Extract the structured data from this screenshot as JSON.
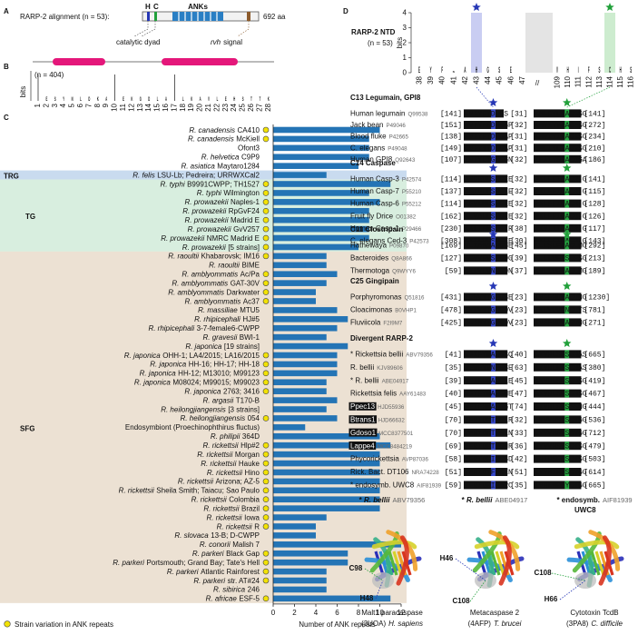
{
  "panel_labels": [
    "A",
    "B",
    "C",
    "D",
    "E"
  ],
  "panel_a": {
    "title": "RARP-2 alignment (n = 53):",
    "his": "H",
    "cys": "C",
    "domain": "ANKs",
    "length": "692 aa",
    "dyad": "catalytic dyad",
    "signal_motif": "rvh",
    "signal": "signal"
  },
  "panel_b": {
    "n": "(n = 404)",
    "ylabel": "bits",
    "letters": [
      null,
      "E",
      "S",
      "Y",
      "N",
      "L",
      "D",
      "K",
      "A",
      null,
      "E",
      "K",
      "G",
      "D",
      "L",
      "A",
      null,
      "L",
      "K",
      "A",
      "V",
      "L",
      "E",
      "H",
      "S",
      "T",
      "T",
      "K"
    ],
    "positions": [
      1,
      2,
      3,
      4,
      5,
      6,
      7,
      8,
      9,
      10,
      11,
      12,
      13,
      14,
      15,
      16,
      17,
      18,
      19,
      20,
      21,
      22,
      23,
      24,
      25,
      26,
      27,
      28
    ]
  },
  "chart_data": {
    "type": "bar",
    "orientation": "horizontal",
    "color": "#2474b5",
    "xlabel": "Number of ANK repeats",
    "xlim": [
      0,
      12
    ],
    "xticks": [
      0,
      2,
      4,
      6,
      8,
      10,
      12
    ],
    "legend": "Strain variation in ANK repeats",
    "marker_color": "#f2e205",
    "groups": [
      {
        "name": "TRG",
        "rows": [
          5,
          5
        ],
        "color": "#2f6fbf",
        "band": "#c9dbef"
      },
      {
        "name": "TG",
        "rows": [
          6,
          13
        ],
        "color": "#35a563",
        "band": "#d8eedf"
      },
      {
        "name": "SFG",
        "rows": [
          14,
          52
        ],
        "color": "#ad6638",
        "band": "#ece1d3"
      }
    ],
    "categories": [
      {
        "species": "R. canadensis",
        "strain": "CA410"
      },
      {
        "species": "R. canadensis",
        "strain": "McKiell"
      },
      {
        "strain": "Ofont3"
      },
      {
        "species": "R. helvetica",
        "strain": "C9P9"
      },
      {
        "species": "R. asiatica",
        "strain": "Maytaro1284"
      },
      {
        "species": "R. felis",
        "strain": "LSU-Lb; Pedreira; URRWXCal2"
      },
      {
        "species": "R. typhi",
        "strain": "B9991CWPP; TH1527"
      },
      {
        "species": "R. typhi",
        "strain": "Wilmington"
      },
      {
        "species": "R. prowazekii",
        "strain": "Naples-1"
      },
      {
        "species": "R. prowazekii",
        "strain": "RpGvF24"
      },
      {
        "species": "R. prowazekii",
        "strain": "Madrid E"
      },
      {
        "species": "R. prowazekii",
        "strain": "GvV257"
      },
      {
        "species": "R. prowazekii",
        "strain": "NMRC Madrid E"
      },
      {
        "species": "R. prowazekii",
        "strain": "[5 strains]"
      },
      {
        "species": "R. raoultii",
        "strain": "Khabarovsk; IM16"
      },
      {
        "species": "R. raoultii",
        "strain": "BIME"
      },
      {
        "species": "R. amblyommatis",
        "strain": "Ac/Pa"
      },
      {
        "species": "R. amblyommatis",
        "strain": "GAT-30V"
      },
      {
        "species": "R. amblyommatis",
        "strain": "Darkwater"
      },
      {
        "species": "R. amblyommatis",
        "strain": "Ac37"
      },
      {
        "species": "R. massiliae",
        "strain": "MTU5"
      },
      {
        "species": "R. rhipicephali",
        "strain": "HJ#5"
      },
      {
        "species": "R. rhipicephali",
        "strain": "3-7-female6-CWPP"
      },
      {
        "species": "R. gravesii",
        "strain": "BWI-1"
      },
      {
        "species": "R. japonica",
        "strain": "[19 strains]"
      },
      {
        "species": "R. japonica",
        "strain": "OHH-1; LA4/2015; LA16/2015"
      },
      {
        "species": "R. japonica",
        "strain": "HH-16; HH-17; HH-18"
      },
      {
        "species": "R. japonica",
        "strain": "HH-12; M13010; M99123"
      },
      {
        "species": "R. japonica",
        "strain": "M08024; M99015; M99023"
      },
      {
        "species": "R. japonica",
        "strain": "2763; 3416"
      },
      {
        "species": "R. argasii",
        "strain": "T170-B"
      },
      {
        "species": "R. heilongjiangensis",
        "strain": "[3 strains]"
      },
      {
        "species": "R. heilongjiangensis",
        "strain": "054"
      },
      {
        "strain": "Endosymbiont (Proechinophthirus fluctus)"
      },
      {
        "species": "R. philipii",
        "strain": "364D"
      },
      {
        "species": "R. rickettsii",
        "strain": "Hlp#2"
      },
      {
        "species": "R. rickettsii",
        "strain": "Morgan"
      },
      {
        "species": "R. rickettsii",
        "strain": "Hauke"
      },
      {
        "species": "R. rickettsii",
        "strain": "Hino"
      },
      {
        "species": "R. rickettsii",
        "strain": "Arizona; AZ-5"
      },
      {
        "species": "R. rickettsii",
        "strain": "Sheila Smith; Taiacu; Sao Paulo"
      },
      {
        "species": "R. rickettsii",
        "strain": "Colombia"
      },
      {
        "species": "R. rickettsii",
        "strain": "Brazil"
      },
      {
        "species": "R. rickettsii",
        "strain": "Iowa"
      },
      {
        "species": "R. rickettsii",
        "strain": "R"
      },
      {
        "species": "R. slovaca",
        "strain": "13-B; D-CWPP"
      },
      {
        "species": "R. conorii",
        "strain": "Malish 7"
      },
      {
        "species": "R. parkeri",
        "strain": "Black Gap"
      },
      {
        "species": "R. parkeri",
        "strain": "Portsmouth; Grand Bay; Tate's Hell"
      },
      {
        "species": "R. parkeri",
        "strain": "Atlantic Rainforest"
      },
      {
        "species": "R. parkeri",
        "strain": "str. AT#24"
      },
      {
        "species": "R. sibirica",
        "strain": "246"
      },
      {
        "species": "R. africae",
        "strain": "ESF-5"
      }
    ],
    "values": [
      10,
      9,
      9,
      9,
      8,
      5,
      11,
      9,
      10,
      9,
      9,
      9,
      9,
      8,
      5,
      5,
      6,
      5,
      4,
      4,
      6,
      7,
      6,
      5,
      7,
      6,
      6,
      6,
      5,
      5,
      6,
      5,
      6,
      3,
      10,
      11,
      10,
      10,
      10,
      10,
      10,
      10,
      10,
      5,
      4,
      4,
      12,
      7,
      7,
      5,
      5,
      5,
      11
    ],
    "variation": [
      true,
      true,
      false,
      false,
      false,
      false,
      true,
      true,
      true,
      true,
      true,
      true,
      true,
      true,
      true,
      false,
      true,
      true,
      true,
      true,
      false,
      false,
      false,
      false,
      false,
      true,
      true,
      true,
      true,
      true,
      false,
      false,
      true,
      false,
      false,
      true,
      true,
      true,
      true,
      true,
      true,
      true,
      true,
      true,
      true,
      false,
      false,
      true,
      true,
      true,
      true,
      false,
      true
    ]
  },
  "panel_d": {
    "title": "RARP-2 NTD",
    "n": "(n = 53)",
    "ylabel": "bits",
    "ylim": [
      0,
      4
    ],
    "yticks": [
      0,
      1,
      2,
      3,
      4
    ],
    "logo_left": {
      "positions": [
        38,
        39,
        40,
        41,
        42,
        43,
        44,
        45,
        46,
        47
      ],
      "letters": [
        "E",
        "Y",
        "F",
        "N",
        "A",
        "H",
        "G",
        "S",
        "E",
        null
      ]
    },
    "break": "//",
    "logo_right": {
      "positions": [
        109,
        110,
        111,
        112,
        113,
        114,
        115,
        116
      ],
      "letters": [
        "V",
        "H",
        "I",
        "F",
        "S",
        "C",
        "H",
        "S"
      ]
    },
    "families": [
      {
        "name": "C13 Legumain, GPI8",
        "rows": [
          {
            "name": "Human legumain",
            "acc": "Q99538",
            "start": "[141]",
            "seq1": "FVFYFTDHGS",
            "gap": "[31]",
            "seq2": "KMLFYLEACESG",
            "end": "[141]"
          },
          {
            "name": "Jack bean",
            "acc": "P49046",
            "start": "[151]",
            "seq1": "FVFYFSDHGGP",
            "gap": "[32]",
            "seq2": "KMVIYVEACESG",
            "end": "[272]"
          },
          {
            "name": "Blood fluke",
            "acc": "P42665",
            "start": "[138]",
            "seq1": "FVFYFTDHGAP",
            "gap": "[31]",
            "seq2": "KMVIYIEACESG",
            "end": "[234]"
          },
          {
            "name": "C. elegans",
            "acc": "P49048",
            "start": "[149]",
            "seq1": "LVFYYTDHGAP",
            "gap": "[31]",
            "seq2": "QMLIYLEACESG",
            "end": "[210]"
          },
          {
            "name": "Human GPI8",
            "acc": "Q92643",
            "start": "[107]",
            "seq1": "IVFYLTGHGGN",
            "gap": "[32]",
            "seq2": "KFAIYSEACQGA",
            "end": "[186]"
          }
        ]
      },
      {
        "name": "C14 Caspase",
        "rows": [
          {
            "name": "Human Casp-3",
            "acc": "P42574",
            "start": "[114]",
            "seq1": "ANCRVLSHGEE",
            "gap": "[32]",
            "seq2": "PKLFFIQACR-G",
            "end": "[141]"
          },
          {
            "name": "Human Casp-7",
            "acc": "P55210",
            "start": "[137]",
            "seq1": "AGIPLLSHGEE",
            "gap": "[32]",
            "seq2": "PKLFFIQACR-G",
            "end": "[115]"
          },
          {
            "name": "Human Casp-6",
            "acc": "P55212",
            "start": "[114]",
            "seq1": "KFVLMLSHGEE",
            "gap": "[32]",
            "seq2": "PKLFFIQACR-G",
            "end": "[128]"
          },
          {
            "name": "Fruit fly Drice",
            "acc": "O01382",
            "start": "[162]",
            "seq1": "KLVALLSHGEE",
            "gap": "[32]",
            "seq2": "PKLFFIQACQ-G",
            "end": "[126]"
          },
          {
            "name": "Human Casp-1",
            "acc": "P29466",
            "start": "[230]",
            "seq1": "KALIFMSHGIR",
            "gap": "[38]",
            "seq2": "PKVIIIQACR-G",
            "end": "[117]"
          },
          {
            "name": "C. elegans Ced-3",
            "acc": "P42573",
            "start": "[308]",
            "seq1": "KIILVLSHGEE",
            "gap": "[30]",
            "seq2": "PKLFFIQACR-G",
            "end": "[143]"
          }
        ]
      },
      {
        "name": "C11 Clostripain",
        "rows": [
          {
            "name": "Hathewaya",
            "acc": "P09870",
            "start": "[169]",
            "seq1": "VLIANAAHGGE",
            "gap": "[45]",
            "seq2": "KLLSLFDACLMG",
            "end": "[292]"
          },
          {
            "name": "Bacteroides",
            "acc": "Q8A866",
            "start": "[127]",
            "seq1": "GGVVFVSHGDG",
            "gap": "[39]",
            "seq2": "KLLLVFDSCFSG",
            "end": "[213]"
          },
          {
            "name": "Thermotoga",
            "acc": "Q9WYY6",
            "start": "[59]",
            "seq1": "LILVLVNHGDN",
            "gap": "[37]",
            "seq2": "KNLLVFDACLMG",
            "end": "[189]"
          }
        ]
      },
      {
        "name": "C25 Gingipain",
        "rows": [
          {
            "name": "Porphyromonas",
            "acc": "Q51816",
            "start": "[431]",
            "seq1": "YLNVYTGHGSE",
            "gap": "[23]",
            "seq2": "IVFFHDVACVNG",
            "end": "[1230]"
          },
          {
            "name": "Cloacimonas",
            "acc": "B0VHP1",
            "start": "[478]",
            "seq1": "IYLVYTGHGDV",
            "gap": "[23]",
            "seq2": "IILVVVGNCLTS",
            "end": "[781]"
          },
          {
            "name": "Fluviicola",
            "acc": "F2I9M7",
            "start": "[425]",
            "seq1": "SLFNYTGHGDV",
            "gap": "[23]",
            "seq2": "IVFFHDVAGVNG",
            "end": "[271]"
          }
        ]
      },
      {
        "name": "Divergent  RARP-2",
        "rows": [
          {
            "name": "* Rickettsia bellii",
            "acc": "ABV79356",
            "start": "[41]",
            "seq1": "VEIFYNAHGSQ",
            "gap": "[40]",
            "seq2": "AIVHLSFSCHAS",
            "end": "[665]"
          },
          {
            "name": "R. bellii",
            "acc": "KJV89606",
            "start": "[35]",
            "seq1": "VEWFYVNHGSE",
            "gap": "[63]",
            "seq2": "AIVHLNFSCHAS",
            "end": "[380]"
          },
          {
            "name": "* R. bellii",
            "acc": "ABE04917",
            "start": "[39]",
            "seq1": "VEIFHRAHGLE",
            "gap": "[45]",
            "seq2": "AIVHLSFSCHSG",
            "end": "[419]"
          },
          {
            "name": "Rickettsia felis",
            "acc": "AAY61483",
            "start": "[40]",
            "seq1": "VEYFYNAHGME",
            "gap": "[47]",
            "seq2": "AIVHLSFSCHSG",
            "end": "[467]"
          },
          {
            "name": "Ppec13",
            "acc": "HJD55936",
            "boxed": true,
            "start": "[45]",
            "seq1": "VEIFHNAHGGT",
            "gap": "[74]",
            "seq2": "AIVHLSFSSSNG",
            "end": "[444]"
          },
          {
            "name": "Btrans1",
            "acc": "HJD66632",
            "boxed": true,
            "start": "[70]",
            "seq1": "YFRIDHTHGLR",
            "gap": "[32]",
            "seq2": "LYVVHSYSCYGG",
            "end": "[536]"
          },
          {
            "name": "Gdoso1",
            "acc": "MCC8377501",
            "boxed": true,
            "start": "[70]",
            "seq1": "YFRIDHTHGLN",
            "gap": "[33]",
            "seq2": "LYVVHSYSCYGG",
            "end": "[712]"
          },
          {
            "name": "Lappe4",
            "acc": "MCC8484219",
            "boxed": true,
            "start": "[69]",
            "seq1": "YFRIDHTHGNR",
            "gap": "[36]",
            "seq2": "VYVVHSYSCYSG",
            "end": "[479]"
          },
          {
            "name": "Phycorickettsia",
            "acc": "AVP87036",
            "start": "[58]",
            "seq1": "YFRIDHIHGSD",
            "gap": "[42]",
            "seq2": "LHIHSFSSCYSG",
            "end": "[503]"
          },
          {
            "name": "Rick. Bact. DT106",
            "acc": "NRA74228",
            "start": "[51]",
            "seq1": "YFRIDTFHGEN",
            "gap": "[51]",
            "seq2": "LYVHINHSCYGG",
            "end": "[614]"
          },
          {
            "name": "* endosymb. UWC8",
            "acc": "AIF81939",
            "start": "[59]",
            "seq1": "YFRIDHIHARC",
            "gap": "[35]",
            "seq2": "IVHLNHSYCYGG",
            "end": "[665]"
          }
        ]
      }
    ]
  },
  "panel_e": {
    "structures": [
      {
        "pre": "* ",
        "species": "R. bellii",
        "acc": "ABV79356",
        "residues": [
          "C98",
          "H48"
        ],
        "caption": "Malt1 paracaspase",
        "code": "(3UOA)",
        "organism": "H. sapiens"
      },
      {
        "pre": "* ",
        "species": "R. bellii",
        "acc": "ABE04917",
        "residues": [
          "H46",
          "C108"
        ],
        "caption": "Metacaspase 2",
        "code": "(4AFP)",
        "organism": "T. brucei"
      },
      {
        "pre": "* endosymb.",
        "acc": "AIF81939",
        "line2": "UWC8",
        "residues": [
          "C108",
          "H66"
        ],
        "caption": "Cytotoxin TcdB",
        "code": "(3PA8)",
        "organism": "C. difficile"
      }
    ]
  },
  "letter_colors": {
    "E": "#d4145a",
    "D": "#d4145a",
    "K": "#2b5fb5",
    "R": "#2b5fb5",
    "H": "#2e3fc4",
    "S": "#2a9d3c",
    "T": "#2a9d3c",
    "N": "#2a9d3c",
    "C": "#2a9d3c",
    "Q": "#2a9d3c",
    "Y": "#9b30b0",
    "F": "#9b30b0",
    "W": "#9b30b0",
    "G": "#222",
    "A": "#222",
    "L": "#222",
    "V": "#222",
    "I": "#222",
    "M": "#222",
    "P": "#222"
  },
  "residue_colors": {
    "C": "#21a03a",
    "H": "#2637b5"
  }
}
